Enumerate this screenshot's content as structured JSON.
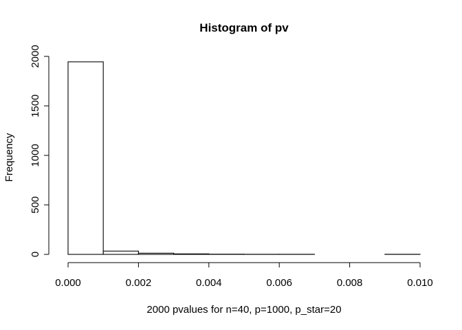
{
  "chart_data": {
    "type": "bar",
    "title": "Histogram of pv",
    "xlabel": "2000 pvalues for n=40, p=1000, p_star=20",
    "ylabel": "Frequency",
    "bins": [
      {
        "x0": 0.0,
        "x1": 0.001,
        "count": 1945
      },
      {
        "x0": 0.001,
        "x1": 0.002,
        "count": 33
      },
      {
        "x0": 0.002,
        "x1": 0.003,
        "count": 12
      },
      {
        "x0": 0.003,
        "x1": 0.004,
        "count": 5
      },
      {
        "x0": 0.004,
        "x1": 0.005,
        "count": 2
      },
      {
        "x0": 0.005,
        "x1": 0.006,
        "count": 1
      },
      {
        "x0": 0.006,
        "x1": 0.007,
        "count": 1
      },
      {
        "x0": 0.007,
        "x1": 0.008,
        "count": 0
      },
      {
        "x0": 0.008,
        "x1": 0.009,
        "count": 0
      },
      {
        "x0": 0.009,
        "x1": 0.01,
        "count": 1
      }
    ],
    "x_ticks": [
      "0.000",
      "0.002",
      "0.004",
      "0.006",
      "0.008",
      "0.010"
    ],
    "y_ticks": [
      "0",
      "500",
      "1000",
      "1500",
      "2000"
    ],
    "xlim": [
      0,
      0.01
    ],
    "ylim": [
      0,
      2000
    ],
    "grid": false,
    "legend": "none"
  }
}
